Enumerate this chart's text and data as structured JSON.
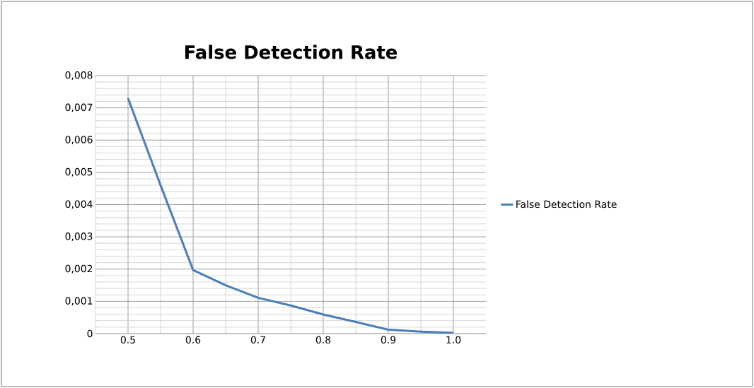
{
  "chart_data": {
    "type": "line",
    "title": "False Detection Rate",
    "x": [
      0.5,
      0.55,
      0.6,
      0.65,
      0.7,
      0.75,
      0.8,
      0.85,
      0.9,
      0.95,
      1.0
    ],
    "series": [
      {
        "name": "False Detection Rate",
        "color": "#4a7ebb",
        "values": [
          0.0073,
          0.0046,
          0.00197,
          0.0015,
          0.00111,
          0.00087,
          0.00059,
          0.00036,
          0.00012,
          6e-05,
          2e-05
        ]
      }
    ],
    "xlim": [
      0.45,
      1.05
    ],
    "xticks": [
      {
        "value": 0.5,
        "label": "0.5"
      },
      {
        "value": 0.6,
        "label": "0.6"
      },
      {
        "value": 0.7,
        "label": "0.7"
      },
      {
        "value": 0.8,
        "label": "0.8"
      },
      {
        "value": 0.9,
        "label": "0.9"
      },
      {
        "value": 1.0,
        "label": "1.0"
      }
    ],
    "ylim": [
      0,
      0.008
    ],
    "yticks": [
      0,
      {
        "value": 0.001,
        "label": "0,001"
      },
      {
        "value": 0.002,
        "label": "0,002"
      },
      {
        "value": 0.003,
        "label": "0,003"
      },
      {
        "value": 0.004,
        "label": "0,004"
      },
      {
        "value": 0.005,
        "label": "0,005"
      },
      {
        "value": 0.006,
        "label": "0,006"
      },
      {
        "value": 0.007,
        "label": "0,007"
      },
      {
        "value": 0.008,
        "label": "0,008"
      }
    ],
    "grid": true,
    "legend": "right",
    "marker": "none",
    "line_style": "solid"
  }
}
